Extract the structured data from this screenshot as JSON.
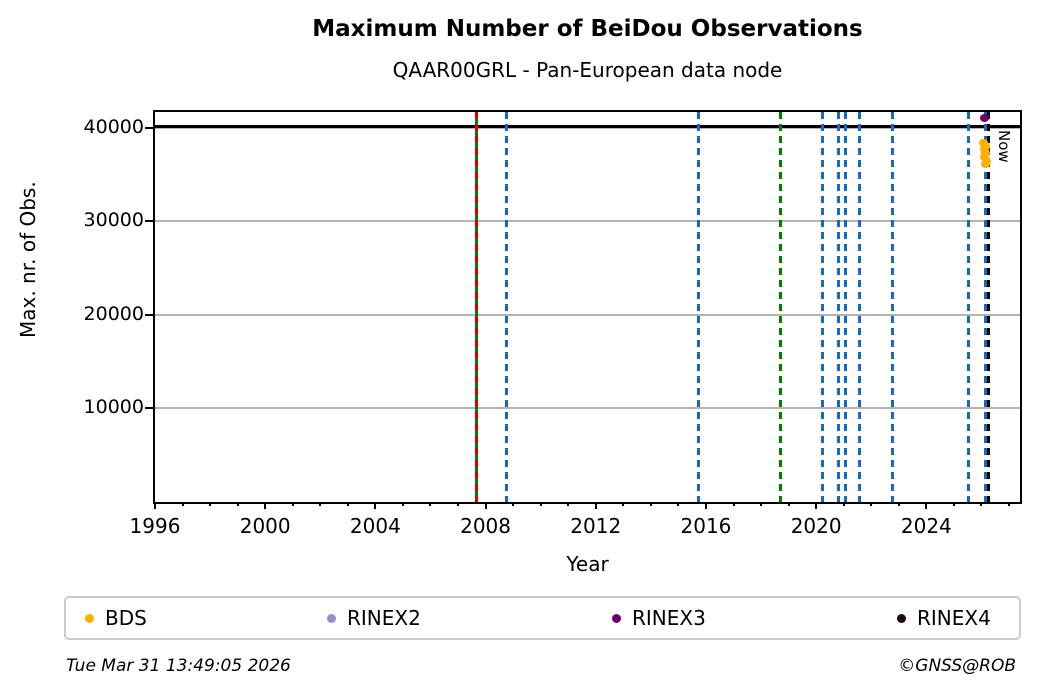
{
  "chart_data": {
    "type": "scatter",
    "title": "Maximum Number of BeiDou Observations",
    "subtitle": "QAAR00GRL - Pan-European data node",
    "xlabel": "Year",
    "ylabel": "Max. nr. of Obs.",
    "xlim": [
      1996,
      2027.4
    ],
    "ylim": [
      0,
      41700
    ],
    "xticks_major": [
      1996,
      2000,
      2004,
      2008,
      2012,
      2016,
      2020,
      2024
    ],
    "xtick_minor_step": 1,
    "yticks": [
      10000,
      20000,
      30000,
      40000
    ],
    "grid": {
      "horizontal": true,
      "vertical": false,
      "color": "#b3b3b3"
    },
    "hlines": [
      {
        "y": 40200,
        "color": "#000000",
        "style": "solid"
      }
    ],
    "vlines": [
      {
        "x": 2007.65,
        "color": "#008000",
        "style": "solid"
      },
      {
        "x": 2007.65,
        "color": "#dd0000",
        "style": "dashed"
      },
      {
        "x": 2008.75,
        "color": "#1867c0",
        "style": "dashed"
      },
      {
        "x": 2015.7,
        "color": "#1867c0",
        "style": "dashed"
      },
      {
        "x": 2018.7,
        "color": "#008000",
        "style": "dashed"
      },
      {
        "x": 2020.2,
        "color": "#1867c0",
        "style": "dashed"
      },
      {
        "x": 2020.8,
        "color": "#1867c0",
        "style": "dashed"
      },
      {
        "x": 2021.05,
        "color": "#1867c0",
        "style": "dashed"
      },
      {
        "x": 2021.55,
        "color": "#1867c0",
        "style": "dashed"
      },
      {
        "x": 2022.75,
        "color": "#1867c0",
        "style": "dashed"
      },
      {
        "x": 2025.5,
        "color": "#1867c0",
        "style": "dashed"
      },
      {
        "x": 2026.12,
        "color": "#1867c0",
        "style": "dashed"
      },
      {
        "x": 2026.25,
        "color": "#000000",
        "style": "dashed",
        "label": "Now"
      }
    ],
    "series": [
      {
        "name": "BDS",
        "color": "#ffaf00",
        "points": [
          [
            2026.08,
            38400
          ],
          [
            2026.14,
            38100
          ],
          [
            2026.1,
            37700
          ],
          [
            2026.16,
            37300
          ],
          [
            2026.11,
            36900
          ],
          [
            2026.17,
            36500
          ],
          [
            2026.13,
            36100
          ]
        ]
      },
      {
        "name": "RINEX2",
        "color": "#9191c9",
        "points": []
      },
      {
        "name": "RINEX3",
        "color": "#6e0066",
        "points": [
          [
            2026.12,
            41100
          ]
        ]
      },
      {
        "name": "RINEX4",
        "color": "#1a0416",
        "points": []
      }
    ],
    "legend": {
      "position": "bottom",
      "entries": [
        "BDS",
        "RINEX2",
        "RINEX3",
        "RINEX4"
      ]
    }
  },
  "footer": {
    "timestamp": "Tue Mar 31 13:49:05 2026",
    "credit": "©GNSS@ROB"
  }
}
